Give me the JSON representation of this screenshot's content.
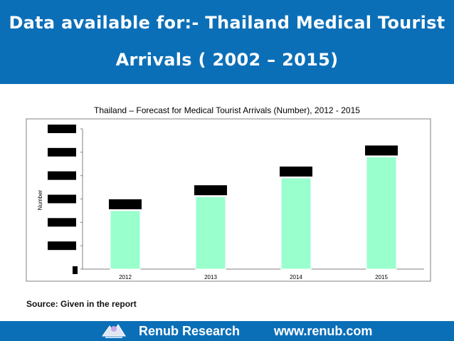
{
  "header": {
    "line1": "Data available for:- Thailand Medical Tourist",
    "line2": "Arrivals ( 2002 – 2015)"
  },
  "footer": {
    "company": "Renub Research",
    "website": "www.renub.com"
  },
  "source_text": "Source: Given in the report",
  "colors": {
    "header_bg": "#0b6fb8",
    "bar_fill": "#99ffcc",
    "label_box": "#000000"
  },
  "chart_data": {
    "type": "bar",
    "title": "Thailand – Forecast for Medical Tourist Arrivals (Number), 2012 - 2015",
    "xlabel": "",
    "ylabel": "Number",
    "categories": [
      "2012",
      "2013",
      "2014",
      "2015"
    ],
    "values": [
      2.5,
      3.1,
      3.9,
      4.8
    ],
    "ylim": [
      0,
      6
    ],
    "ytick_count": 7,
    "grid": false,
    "data_labels_obscured": true,
    "y_tick_labels_obscured": true
  }
}
